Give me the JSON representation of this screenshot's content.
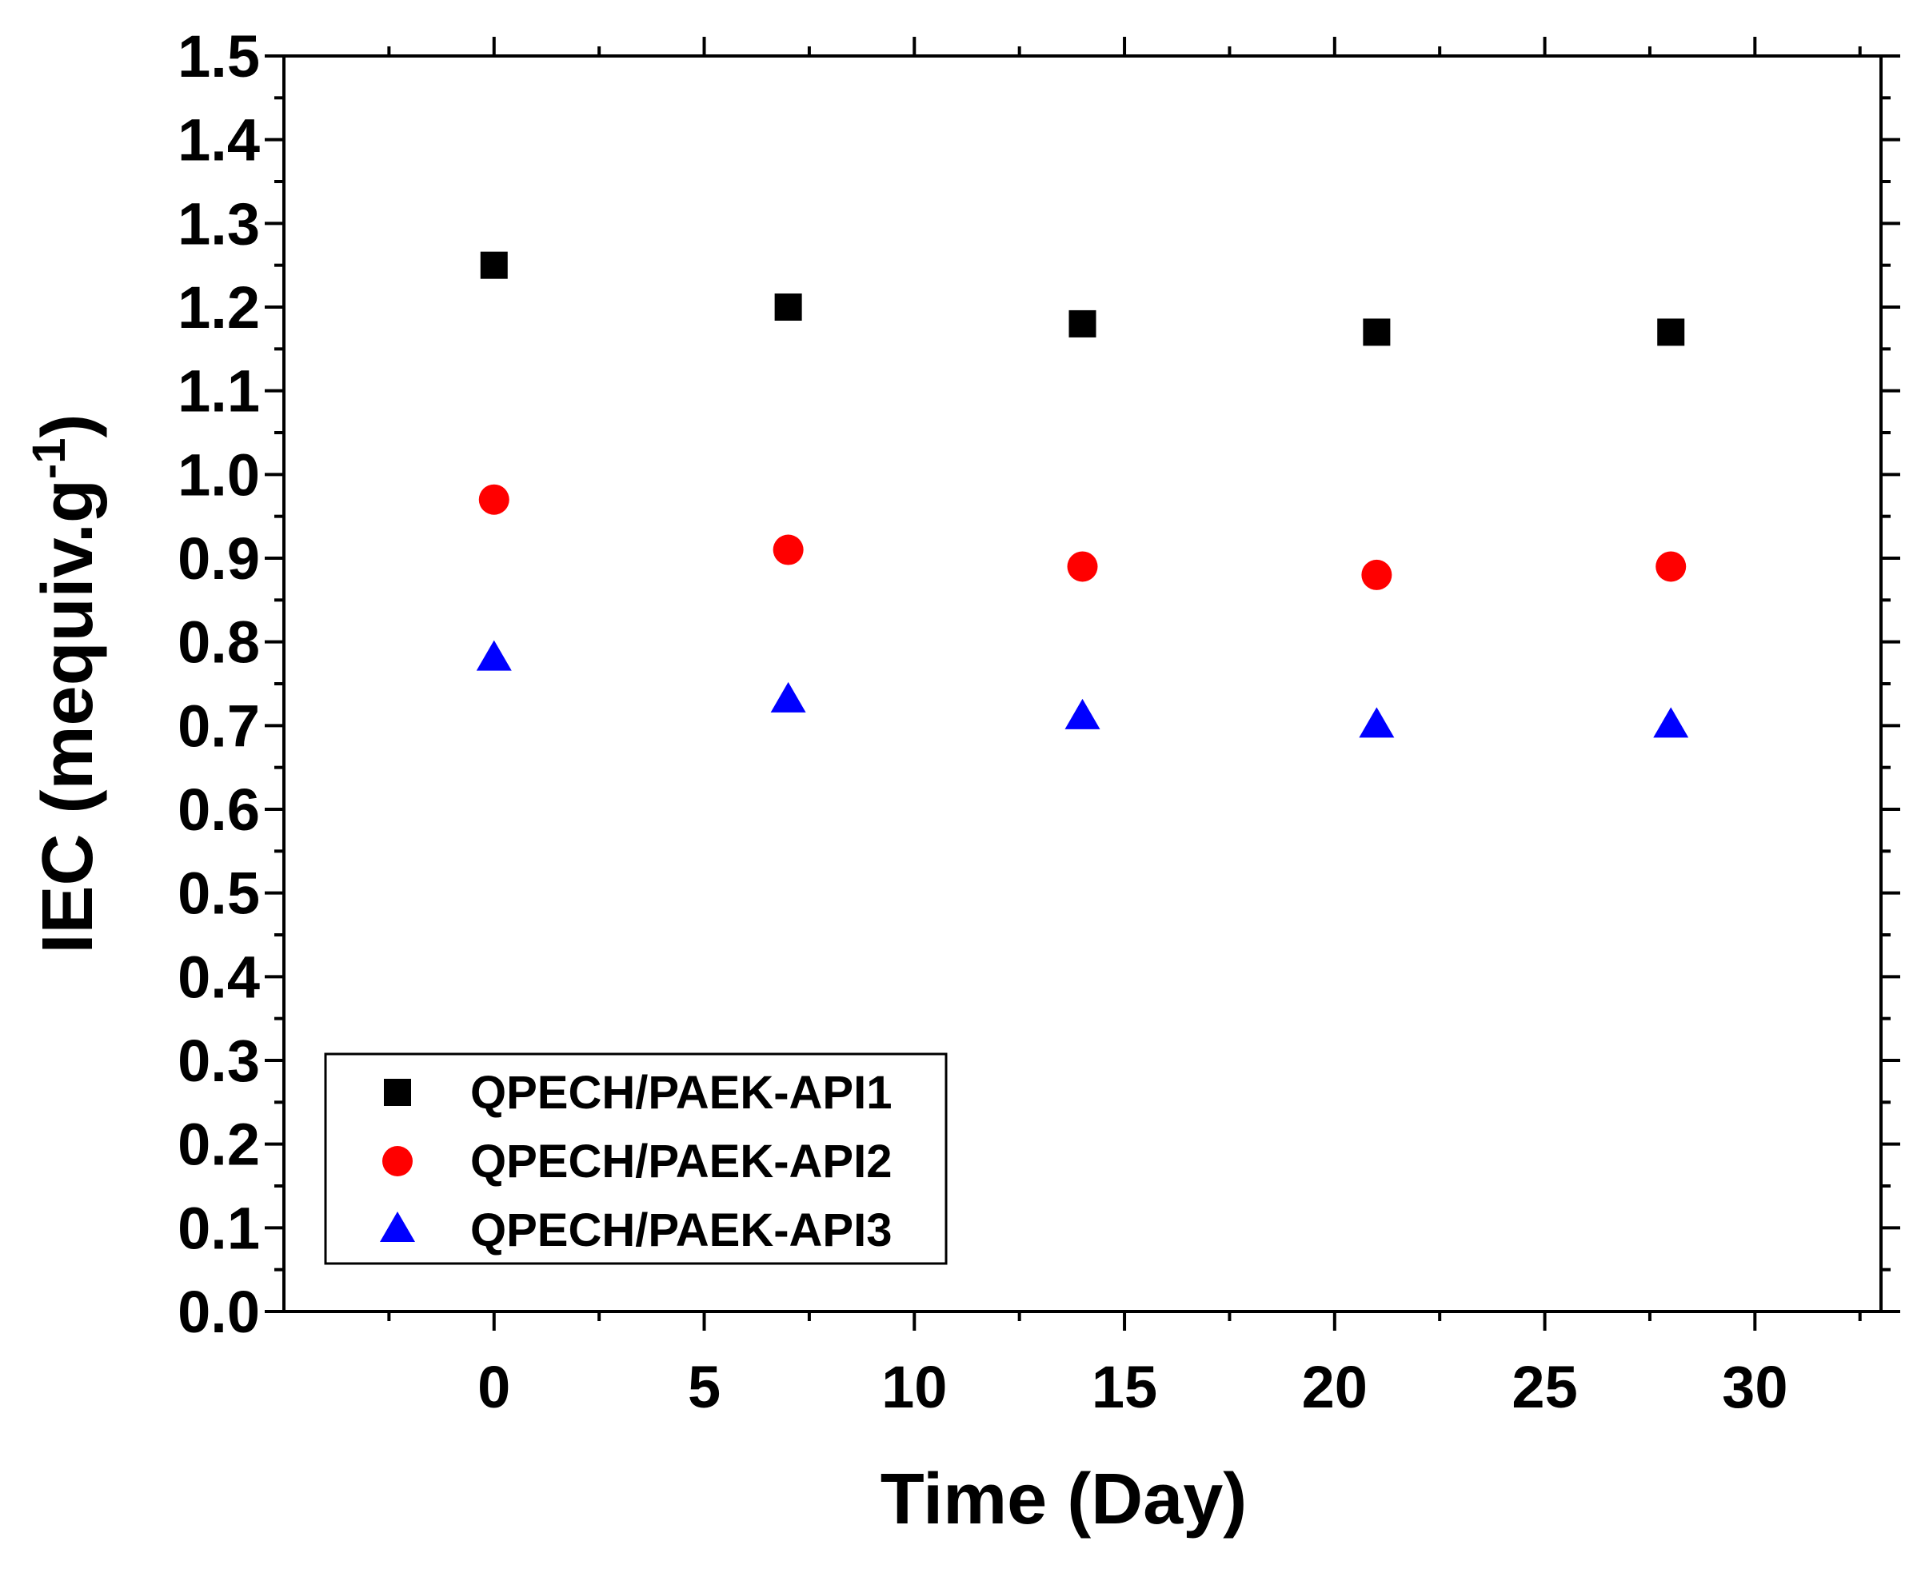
{
  "chart_data": {
    "type": "scatter",
    "title": "",
    "xlabel": "Time (Day)",
    "ylabel_main": "IEC (mequiv.g",
    "ylabel_sup": "-1",
    "ylabel_close": ")",
    "xlim": [
      -5,
      33
    ],
    "ylim": [
      0,
      1.5
    ],
    "x_major_ticks": [
      0,
      5,
      10,
      15,
      20,
      25,
      30
    ],
    "x_tick_labels": [
      "0",
      "5",
      "10",
      "15",
      "20",
      "25",
      "30"
    ],
    "y_major_ticks": [
      0.0,
      0.1,
      0.2,
      0.3,
      0.4,
      0.5,
      0.6,
      0.7,
      0.8,
      0.9,
      1.0,
      1.1,
      1.2,
      1.3,
      1.4,
      1.5
    ],
    "y_tick_labels": [
      "0.0",
      "0.1",
      "0.2",
      "0.3",
      "0.4",
      "0.5",
      "0.6",
      "0.7",
      "0.8",
      "0.9",
      "1.0",
      "1.1",
      "1.2",
      "1.3",
      "1.4",
      "1.5"
    ],
    "legend_position": "bottom-left",
    "grid": false,
    "series": [
      {
        "name": "QPECH/PAEK-API1",
        "marker": "square",
        "color": "#000000",
        "x": [
          0,
          7,
          14,
          21,
          28
        ],
        "y": [
          1.25,
          1.2,
          1.18,
          1.17,
          1.17
        ]
      },
      {
        "name": "QPECH/PAEK-API2",
        "marker": "circle",
        "color": "#ff0000",
        "x": [
          0,
          7,
          14,
          21,
          28
        ],
        "y": [
          0.97,
          0.91,
          0.89,
          0.88,
          0.89
        ]
      },
      {
        "name": "QPECH/PAEK-API3",
        "marker": "triangle",
        "color": "#0000ff",
        "x": [
          0,
          7,
          14,
          21,
          28
        ],
        "y": [
          0.78,
          0.73,
          0.71,
          0.7,
          0.7
        ]
      }
    ]
  }
}
